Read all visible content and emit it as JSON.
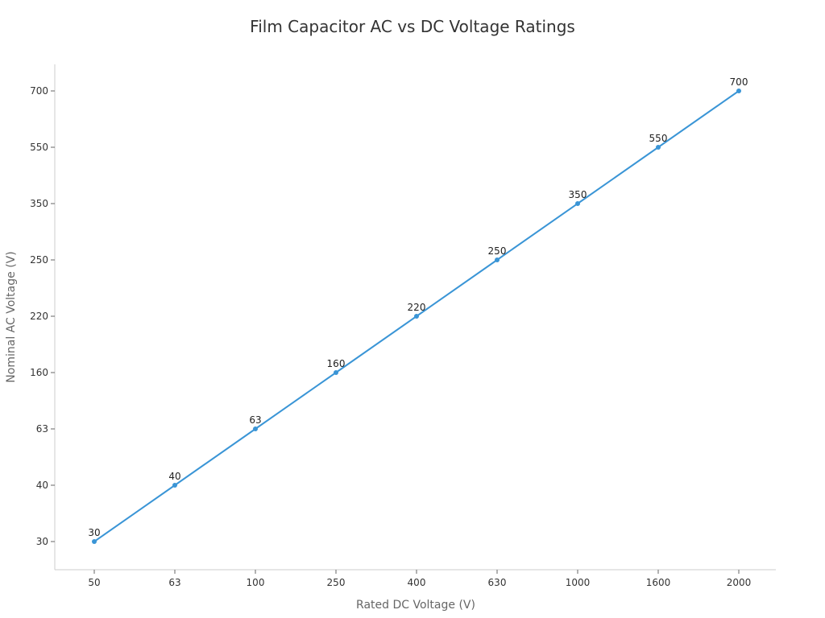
{
  "chart_data": {
    "type": "line",
    "title": "Film Capacitor AC vs DC Voltage Ratings",
    "xlabel": "Rated DC Voltage (V)",
    "ylabel": "Nominal AC Voltage (V)",
    "categories": [
      "50",
      "63",
      "100",
      "250",
      "400",
      "630",
      "1000",
      "1600",
      "2000"
    ],
    "y_categories": [
      "30",
      "40",
      "63",
      "160",
      "220",
      "250",
      "350",
      "550",
      "700"
    ],
    "series": [
      {
        "values": [
          30,
          40,
          63,
          160,
          220,
          250,
          350,
          550,
          700
        ],
        "color": "#3a95d6"
      }
    ],
    "data_labels": [
      "30",
      "40",
      "63",
      "160",
      "220",
      "250",
      "350",
      "550",
      "700"
    ],
    "grid": false,
    "legend": "none"
  }
}
